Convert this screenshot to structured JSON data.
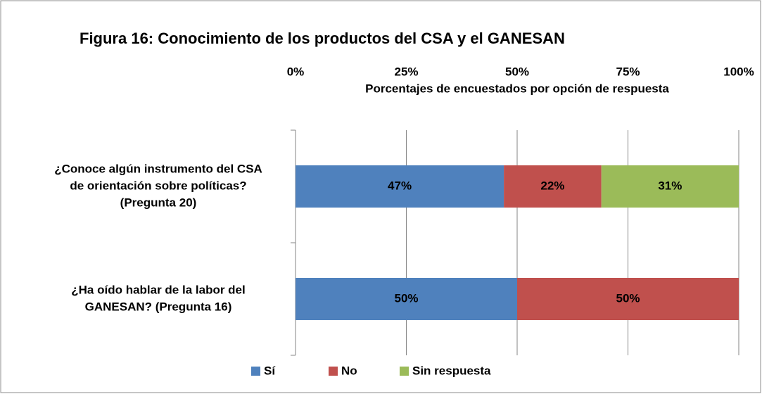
{
  "chart_data": {
    "type": "stacked-bar-horizontal",
    "title": "Figura 16: Conocimiento de los productos del CSA y el GANESAN",
    "x_label": "Porcentajes de encuestados por opción de respuesta",
    "categories": [
      [
        "¿Conoce algún instrumento del CSA",
        "de orientación sobre políticas?",
        "(Pregunta 20)"
      ],
      [
        "¿Ha oído hablar de la labor del",
        "GANESAN? (Pregunta 16)"
      ]
    ],
    "series": [
      {
        "name": "Sí",
        "color": "#4f81bd",
        "values": [
          47,
          50
        ],
        "value_labels": [
          "47%",
          "50%"
        ]
      },
      {
        "name": "No",
        "color": "#c0504d",
        "values": [
          22,
          50
        ],
        "value_labels": [
          "22%",
          "50%"
        ]
      },
      {
        "name": "Sin respuesta",
        "color": "#9bbb59",
        "values": [
          31,
          null
        ],
        "value_labels": [
          "31%",
          null
        ]
      }
    ],
    "xlim": [
      0,
      100
    ],
    "xticks": [
      {
        "value": 0,
        "label": "0%"
      },
      {
        "value": 25,
        "label": "25%"
      },
      {
        "value": 50,
        "label": "50%"
      },
      {
        "value": 75,
        "label": "75%"
      },
      {
        "value": 100,
        "label": "100%"
      }
    ],
    "grid": true,
    "legend": "bottom"
  }
}
